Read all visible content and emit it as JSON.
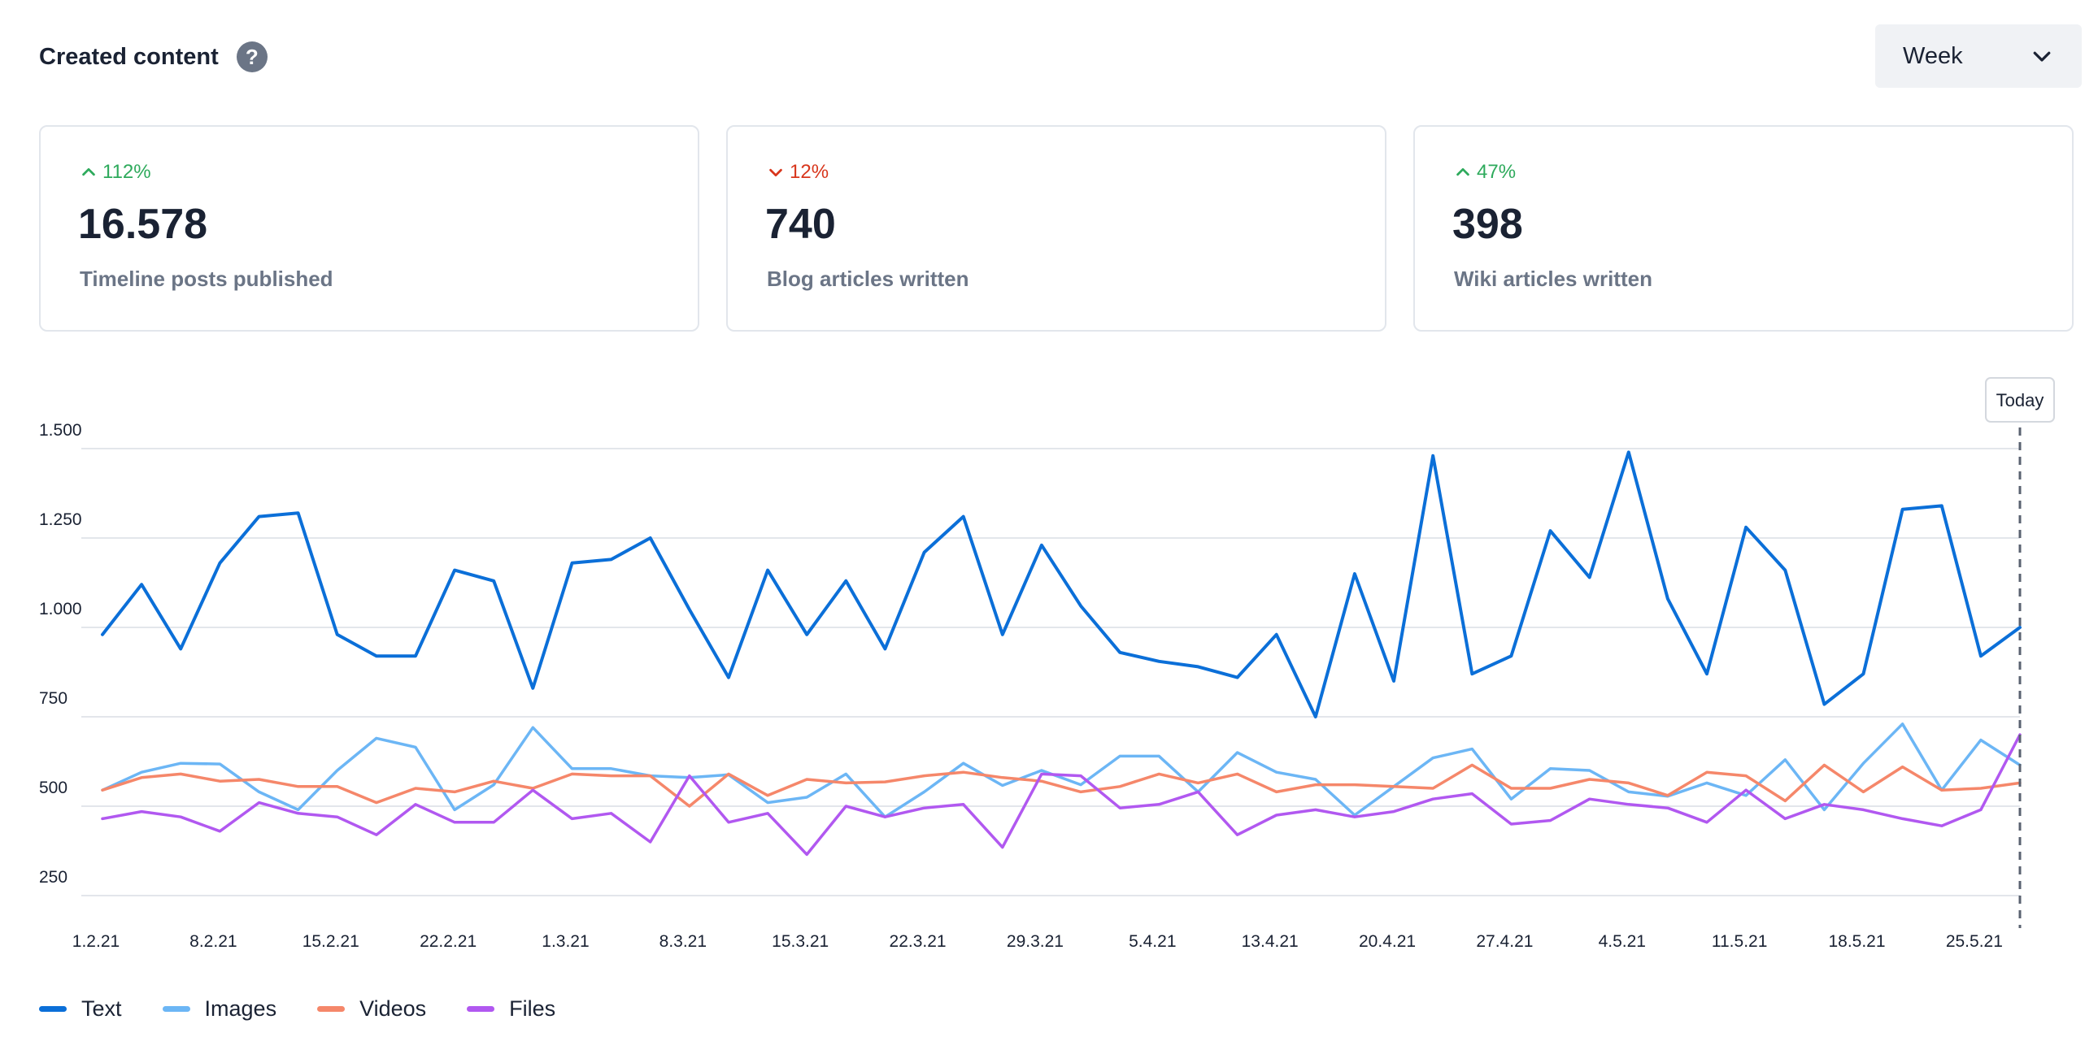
{
  "header": {
    "title": "Created content",
    "help_icon": "?"
  },
  "period_select": {
    "value": "Week"
  },
  "cards": [
    {
      "trend": "112%",
      "direction": "up",
      "value": "16.578",
      "label": "Timeline posts published"
    },
    {
      "trend": "12%",
      "direction": "down",
      "value": "740",
      "label": "Blog articles written"
    },
    {
      "trend": "47%",
      "direction": "up",
      "value": "398",
      "label": "Wiki articles written"
    }
  ],
  "colors": {
    "up": "#2eaa5c",
    "down": "#d8361c",
    "grid": "#e3e6eb",
    "today_line": "#5a6270"
  },
  "chart_data": {
    "type": "line",
    "ylim": [
      200,
      1500
    ],
    "yticks": [
      250,
      500,
      750,
      1000,
      1250,
      1500
    ],
    "ytick_labels": [
      "250",
      "500",
      "750",
      "1.000",
      "1.250",
      "1.500"
    ],
    "xtick_labels": [
      "1.2.21",
      "8.2.21",
      "15.2.21",
      "22.2.21",
      "1.3.21",
      "8.3.21",
      "15.3.21",
      "22.3.21",
      "29.3.21",
      "5.4.21",
      "13.4.21",
      "20.4.21",
      "27.4.21",
      "4.5.21",
      "11.5.21",
      "18.5.21",
      "25.5.21"
    ],
    "marker_label": "Today",
    "series": [
      {
        "name": "Text",
        "color": "#0b6fd8",
        "values": [
          980,
          1120,
          940,
          1180,
          1310,
          1320,
          980,
          920,
          920,
          1160,
          1130,
          830,
          1180,
          1190,
          1250,
          1050,
          860,
          1160,
          980,
          1130,
          940,
          1210,
          1310,
          980,
          1230,
          1060,
          930,
          905,
          890,
          860,
          980,
          750,
          1150,
          850,
          1480,
          870,
          920,
          1270,
          1140,
          1490,
          1080,
          870,
          1280,
          1160,
          785,
          870,
          1330,
          1340,
          920,
          1000
        ]
      },
      {
        "name": "Images",
        "color": "#6cb6f5",
        "values": [
          545,
          595,
          620,
          618,
          540,
          490,
          600,
          690,
          665,
          490,
          560,
          720,
          605,
          605,
          585,
          580,
          588,
          510,
          525,
          590,
          470,
          540,
          620,
          558,
          600,
          560,
          640,
          640,
          540,
          650,
          595,
          575,
          475,
          555,
          635,
          660,
          520,
          605,
          600,
          540,
          528,
          565,
          530,
          630,
          490,
          620,
          730,
          545,
          685,
          615
        ]
      },
      {
        "name": "Videos",
        "color": "#f5876a",
        "values": [
          545,
          580,
          590,
          570,
          575,
          555,
          555,
          510,
          550,
          540,
          570,
          550,
          590,
          585,
          585,
          500,
          590,
          530,
          575,
          565,
          568,
          585,
          595,
          580,
          570,
          540,
          555,
          590,
          565,
          590,
          540,
          560,
          560,
          555,
          550,
          615,
          550,
          550,
          575,
          565,
          530,
          595,
          585,
          515,
          615,
          540,
          610,
          545,
          550,
          565
        ]
      },
      {
        "name": "Files",
        "color": "#b158f0",
        "values": [
          465,
          485,
          470,
          430,
          510,
          480,
          470,
          420,
          505,
          455,
          455,
          545,
          465,
          480,
          400,
          585,
          455,
          480,
          365,
          500,
          470,
          495,
          505,
          385,
          590,
          585,
          495,
          505,
          540,
          420,
          475,
          490,
          470,
          485,
          520,
          535,
          450,
          460,
          520,
          505,
          495,
          455,
          545,
          465,
          505,
          490,
          465,
          445,
          490,
          700
        ]
      }
    ]
  }
}
